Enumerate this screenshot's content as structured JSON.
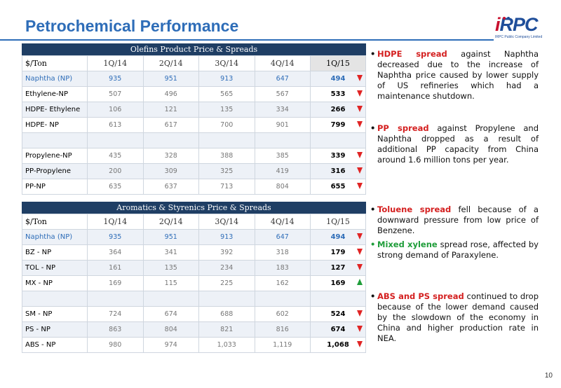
{
  "page": {
    "title": "Petrochemical Performance",
    "page_number": "10"
  },
  "logo": {
    "brand": "IRPC",
    "brand_i": "i",
    "brand_rest": "RPC",
    "tagline": "IRPC Public Company Limited"
  },
  "olefins": {
    "caption": "Olefins Product Price & Spreads",
    "header": [
      "$/Ton",
      "1Q/14",
      "2Q/14",
      "3Q/14",
      "4Q/14",
      "1Q/15"
    ],
    "rows": [
      {
        "label": "Naphtha (NP)",
        "values": [
          "935",
          "951",
          "913",
          "647",
          "494"
        ],
        "trend": "down"
      },
      {
        "label": "Ethylene-NP",
        "values": [
          "507",
          "496",
          "565",
          "567",
          "533"
        ],
        "trend": "down"
      },
      {
        "label": "HDPE- Ethylene",
        "values": [
          "106",
          "121",
          "135",
          "334",
          "266"
        ],
        "trend": "down"
      },
      {
        "label": "HDPE- NP",
        "values": [
          "613",
          "617",
          "700",
          "901",
          "799"
        ],
        "trend": "down"
      },
      {
        "label": "Propylene-NP",
        "values": [
          "435",
          "328",
          "388",
          "385",
          "339"
        ],
        "trend": "down"
      },
      {
        "label": "PP-Propylene",
        "values": [
          "200",
          "309",
          "325",
          "419",
          "316"
        ],
        "trend": "down"
      },
      {
        "label": "PP-NP",
        "values": [
          "635",
          "637",
          "713",
          "804",
          "655"
        ],
        "trend": "down"
      }
    ]
  },
  "aromatics": {
    "caption": "Aromatics & Styrenics Price & Spreads",
    "header": [
      "$/Ton",
      "1Q/14",
      "2Q/14",
      "3Q/14",
      "4Q/14",
      "1Q/15"
    ],
    "rows": [
      {
        "label": "Naphtha (NP)",
        "values": [
          "935",
          "951",
          "913",
          "647",
          "494"
        ],
        "trend": "down"
      },
      {
        "label": "BZ - NP",
        "values": [
          "364",
          "341",
          "392",
          "318",
          "179"
        ],
        "trend": "down"
      },
      {
        "label": "TOL - NP",
        "values": [
          "161",
          "135",
          "234",
          "183",
          "127"
        ],
        "trend": "down"
      },
      {
        "label": "MX - NP",
        "values": [
          "169",
          "115",
          "225",
          "162",
          "169"
        ],
        "trend": "up"
      },
      {
        "label": "SM - NP",
        "values": [
          "724",
          "674",
          "688",
          "602",
          "524"
        ],
        "trend": "down"
      },
      {
        "label": "PS - NP",
        "values": [
          "863",
          "804",
          "821",
          "816",
          "674"
        ],
        "trend": "down"
      },
      {
        "label": "ABS - NP",
        "values": [
          "980",
          "974",
          "1,033",
          "1,119",
          "1,068"
        ],
        "trend": "down"
      }
    ]
  },
  "bullets": [
    {
      "key": "HDPE spread",
      "text": " against Naphtha decreased due to the increase of Naphtha price caused by lower supply of US refineries which had a maintenance shutdown."
    },
    {
      "key": "PP spread",
      "text": " against Propylene and Naphtha dropped as a result of additional PP capacity from China around 1.6 million tons per year."
    },
    {
      "key": "Toluene spread",
      "text": " fell because of a downward pressure from low price of Benzene."
    },
    {
      "key": "Mixed xylene",
      "text": " spread rose, affected by strong demand of Paraxylene."
    },
    {
      "key": "ABS and PS spread",
      "text": " continued to drop because of the lower demand caused by the slowdown of the economy in China and higher production rate in NEA."
    }
  ],
  "colors": {
    "title": "#2e6db8",
    "caption_bg": "#1f3e64",
    "down": "#e02424",
    "up": "#1f9d3a"
  }
}
